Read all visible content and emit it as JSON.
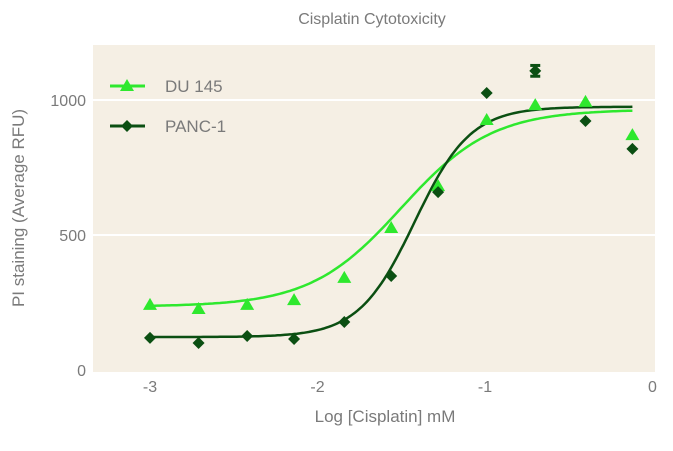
{
  "chart_data": {
    "type": "scatter",
    "title": "Cisplatin Cytotoxicity",
    "xlabel": "Log [Cisplatin] mM",
    "ylabel": "PI staining (Average RFU)",
    "xlim": [
      -3.35,
      0.05
    ],
    "ylim": [
      0,
      1200
    ],
    "xticks": [
      -3,
      -2,
      -1,
      0
    ],
    "yticks": [
      0,
      500,
      1000
    ],
    "grid": "horizontal",
    "legend_position": "top-left",
    "background_color": "#f5efe4",
    "series": [
      {
        "name": "DU 145",
        "marker": "triangle",
        "color": "#2ee82e",
        "x": [
          -3.0,
          -2.71,
          -2.42,
          -2.14,
          -1.84,
          -1.56,
          -1.28,
          -0.99,
          -0.7,
          -0.4,
          -0.12
        ],
        "y": [
          241,
          226,
          241,
          259,
          341,
          526,
          681,
          926,
          981,
          993,
          870
        ],
        "fit": {
          "bottom": 235,
          "top": 965,
          "log_ec50": -1.5,
          "hill": 1.6
        }
      },
      {
        "name": "PANC-1",
        "marker": "diamond",
        "color": "#0b4f12",
        "x": [
          -3.0,
          -2.71,
          -2.42,
          -2.14,
          -1.84,
          -1.56,
          -1.28,
          -0.99,
          -0.7,
          -0.4,
          -0.12
        ],
        "y": [
          119,
          100,
          126,
          115,
          178,
          348,
          659,
          1026,
          1108,
          922,
          819
        ],
        "error": [
          null,
          null,
          null,
          null,
          null,
          null,
          null,
          null,
          20,
          null,
          null
        ],
        "fit": {
          "bottom": 122,
          "top": 975,
          "log_ec50": -1.42,
          "hill": 2.6
        }
      }
    ]
  }
}
